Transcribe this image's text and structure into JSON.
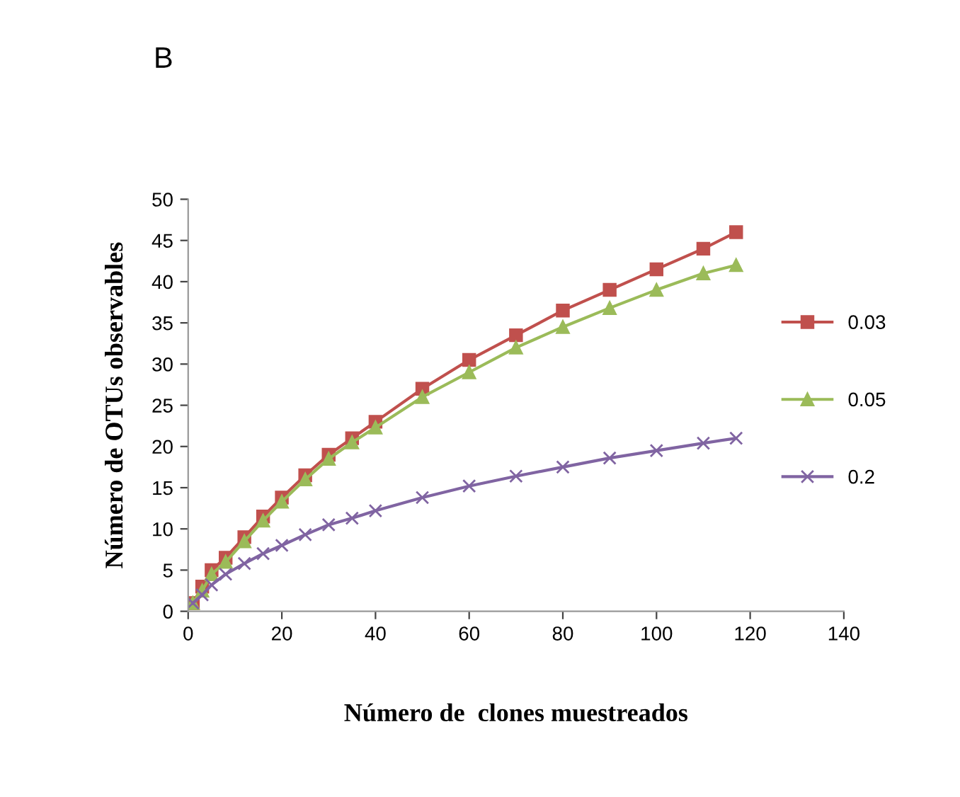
{
  "chart_data": {
    "type": "line",
    "title": "B",
    "xlabel": "Número de  clones muestreados",
    "ylabel": "Número de OTUs observables",
    "x": [
      1,
      3,
      5,
      8,
      12,
      16,
      20,
      25,
      30,
      35,
      40,
      50,
      60,
      70,
      80,
      90,
      100,
      110,
      117
    ],
    "series": [
      {
        "name": "0.03",
        "color": "#c0504d",
        "marker": "square",
        "values": [
          1,
          3,
          5,
          6.5,
          9,
          11.5,
          13.8,
          16.5,
          19,
          21,
          23,
          27,
          30.5,
          33.5,
          36.5,
          39,
          41.5,
          44,
          46
        ]
      },
      {
        "name": "0.05",
        "color": "#9bbb59",
        "marker": "triangle",
        "values": [
          1,
          2.5,
          4.5,
          6,
          8.5,
          11,
          13.3,
          16,
          18.5,
          20.5,
          22.3,
          26,
          29,
          32,
          34.5,
          36.8,
          39,
          41,
          42
        ]
      },
      {
        "name": "0.2",
        "color": "#8064a2",
        "marker": "cross",
        "values": [
          1,
          2,
          3.2,
          4.5,
          5.8,
          7,
          8,
          9.3,
          10.5,
          11.3,
          12.2,
          13.8,
          15.2,
          16.4,
          17.5,
          18.6,
          19.5,
          20.4,
          21
        ]
      }
    ],
    "xlim": [
      0,
      140
    ],
    "xticks": [
      0,
      20,
      40,
      60,
      80,
      100,
      120,
      140
    ],
    "ylim": [
      0,
      50
    ],
    "yticks": [
      0,
      5,
      10,
      15,
      20,
      25,
      30,
      35,
      40,
      45,
      50
    ],
    "grid": false,
    "legend": "right",
    "line_style": "solid"
  }
}
